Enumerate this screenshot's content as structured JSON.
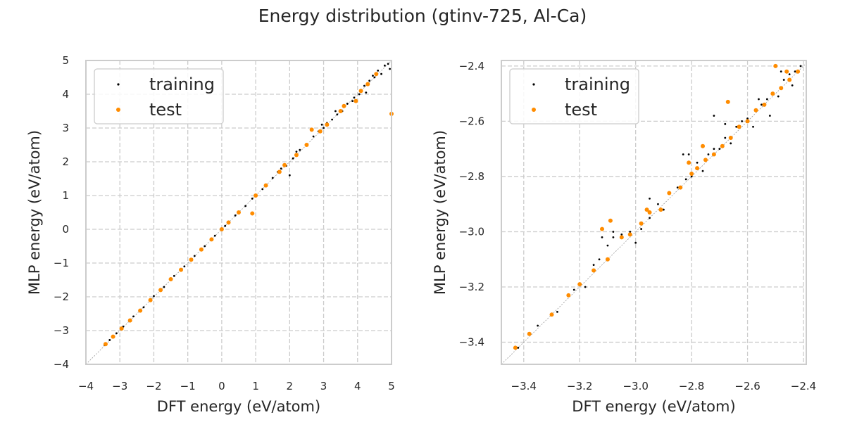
{
  "title": "Energy distribution (gtinv-725, Al-Ca)",
  "colors": {
    "training": "#000000",
    "test": "#ff8c00",
    "grid": "#cccccc",
    "spine": "#cccccc"
  },
  "chart_data": [
    {
      "type": "scatter",
      "xlabel": "DFT energy (eV/atom)",
      "ylabel": "MLP energy (eV/atom)",
      "xlim": [
        -4,
        5
      ],
      "ylim": [
        -4,
        5
      ],
      "xticks": [
        -4,
        -3,
        -2,
        -1,
        0,
        1,
        2,
        3,
        4,
        5
      ],
      "yticks": [
        -4,
        -3,
        -2,
        -1,
        0,
        1,
        2,
        3,
        4,
        5
      ],
      "xtick_labels": [
        "−4",
        "−3",
        "−2",
        "−1",
        "0",
        "1",
        "2",
        "3",
        "4",
        "5"
      ],
      "ytick_labels": [
        "−4",
        "−3",
        "−2",
        "−1",
        "0",
        "1",
        "2",
        "3",
        "4",
        "5"
      ],
      "grid": true,
      "legend": "upper-left",
      "diagonal": true,
      "series": [
        {
          "name": "training",
          "points": [
            [
              -3.45,
              -3.43
            ],
            [
              -3.3,
              -3.28
            ],
            [
              -3.1,
              -3.08
            ],
            [
              -2.9,
              -2.88
            ],
            [
              -2.6,
              -2.58
            ],
            [
              -2.3,
              -2.31
            ],
            [
              -2.0,
              -1.98
            ],
            [
              -1.7,
              -1.71
            ],
            [
              -1.4,
              -1.38
            ],
            [
              -1.1,
              -1.1
            ],
            [
              -0.8,
              -0.79
            ],
            [
              -0.5,
              -0.5
            ],
            [
              -0.2,
              -0.19
            ],
            [
              0.1,
              0.1
            ],
            [
              0.4,
              0.41
            ],
            [
              0.7,
              0.69
            ],
            [
              0.9,
              0.91
            ],
            [
              1.2,
              1.19
            ],
            [
              1.5,
              1.52
            ],
            [
              1.75,
              1.8
            ],
            [
              1.9,
              1.88
            ],
            [
              2.0,
              1.6
            ],
            [
              2.1,
              2.1
            ],
            [
              2.3,
              2.35
            ],
            [
              2.5,
              2.48
            ],
            [
              2.7,
              2.75
            ],
            [
              2.85,
              2.9
            ],
            [
              3.0,
              3.0
            ],
            [
              3.1,
              3.15
            ],
            [
              3.25,
              3.25
            ],
            [
              3.4,
              3.4
            ],
            [
              3.55,
              3.5
            ],
            [
              3.7,
              3.72
            ],
            [
              3.9,
              3.9
            ],
            [
              4.05,
              4.0
            ],
            [
              4.2,
              4.25
            ],
            [
              4.35,
              4.4
            ],
            [
              4.5,
              4.5
            ],
            [
              4.6,
              4.7
            ],
            [
              4.7,
              4.6
            ],
            [
              4.8,
              4.85
            ],
            [
              4.9,
              4.9
            ],
            [
              4.95,
              4.75
            ],
            [
              4.45,
              4.55
            ],
            [
              4.25,
              4.05
            ],
            [
              3.85,
              3.8
            ],
            [
              3.35,
              3.5
            ],
            [
              2.95,
              3.1
            ],
            [
              2.2,
              2.3
            ],
            [
              1.65,
              1.7
            ]
          ]
        },
        {
          "name": "test",
          "points": [
            [
              -3.42,
              -3.4
            ],
            [
              -3.2,
              -3.18
            ],
            [
              -2.95,
              -2.94
            ],
            [
              -2.7,
              -2.7
            ],
            [
              -2.4,
              -2.41
            ],
            [
              -2.1,
              -2.1
            ],
            [
              -1.8,
              -1.8
            ],
            [
              -1.5,
              -1.48
            ],
            [
              -1.2,
              -1.2
            ],
            [
              -0.9,
              -0.9
            ],
            [
              -0.6,
              -0.6
            ],
            [
              -0.3,
              -0.3
            ],
            [
              0.0,
              0.0
            ],
            [
              0.2,
              0.2
            ],
            [
              0.5,
              0.5
            ],
            [
              0.9,
              0.47
            ],
            [
              1.0,
              1.0
            ],
            [
              1.3,
              1.3
            ],
            [
              1.7,
              1.7
            ],
            [
              1.85,
              1.9
            ],
            [
              2.2,
              2.2
            ],
            [
              2.5,
              2.5
            ],
            [
              2.65,
              2.95
            ],
            [
              2.9,
              2.9
            ],
            [
              3.1,
              3.1
            ],
            [
              3.5,
              3.5
            ],
            [
              3.6,
              3.65
            ],
            [
              3.95,
              3.8
            ],
            [
              4.1,
              4.1
            ],
            [
              4.3,
              4.3
            ],
            [
              4.55,
              4.6
            ],
            [
              5.0,
              3.42
            ]
          ]
        }
      ]
    },
    {
      "type": "scatter",
      "xlabel": "DFT energy (eV/atom)",
      "ylabel": "MLP energy (eV/atom)",
      "xlim": [
        -3.48,
        -2.39
      ],
      "ylim": [
        -3.48,
        -2.38
      ],
      "xticks": [
        -3.4,
        -3.2,
        -3.0,
        -2.8,
        -2.6,
        -2.4
      ],
      "yticks": [
        -3.4,
        -3.2,
        -3.0,
        -2.8,
        -2.6,
        -2.4
      ],
      "xtick_labels": [
        "−3.4",
        "−3.2",
        "−3.0",
        "−2.8",
        "−2.6",
        "−2.4"
      ],
      "ytick_labels": [
        "−3.4",
        "−3.2",
        "−3.0",
        "−2.8",
        "−2.6",
        "−2.4"
      ],
      "grid": true,
      "legend": "upper-left",
      "diagonal": true,
      "series": [
        {
          "name": "training",
          "points": [
            [
              -3.42,
              -3.42
            ],
            [
              -3.35,
              -3.34
            ],
            [
              -3.28,
              -3.29
            ],
            [
              -3.22,
              -3.21
            ],
            [
              -3.18,
              -3.2
            ],
            [
              -3.15,
              -3.12
            ],
            [
              -3.13,
              -3.1
            ],
            [
              -3.1,
              -3.05
            ],
            [
              -3.08,
              -3.02
            ],
            [
              -3.05,
              -3.01
            ],
            [
              -3.02,
              -3.0
            ],
            [
              -2.98,
              -2.99
            ],
            [
              -2.95,
              -2.95
            ],
            [
              -2.92,
              -2.9
            ],
            [
              -2.9,
              -2.92
            ],
            [
              -2.88,
              -2.86
            ],
            [
              -2.85,
              -2.84
            ],
            [
              -2.82,
              -2.81
            ],
            [
              -2.8,
              -2.8
            ],
            [
              -2.78,
              -2.75
            ],
            [
              -2.76,
              -2.78
            ],
            [
              -2.74,
              -2.72
            ],
            [
              -2.72,
              -2.7
            ],
            [
              -2.7,
              -2.7
            ],
            [
              -2.68,
              -2.66
            ],
            [
              -2.66,
              -2.68
            ],
            [
              -2.64,
              -2.62
            ],
            [
              -2.62,
              -2.6
            ],
            [
              -2.6,
              -2.59
            ],
            [
              -2.58,
              -2.62
            ],
            [
              -2.55,
              -2.54
            ],
            [
              -2.53,
              -2.52
            ],
            [
              -2.51,
              -2.5
            ],
            [
              -2.49,
              -2.51
            ],
            [
              -2.47,
              -2.45
            ],
            [
              -2.45,
              -2.43
            ],
            [
              -2.43,
              -2.42
            ],
            [
              -2.41,
              -2.4
            ],
            [
              -3.12,
              -3.02
            ],
            [
              -3.08,
              -3.0
            ],
            [
              -2.95,
              -2.88
            ],
            [
              -2.83,
              -2.72
            ],
            [
              -2.81,
              -2.72
            ],
            [
              -2.72,
              -2.58
            ],
            [
              -2.68,
              -2.61
            ],
            [
              -2.56,
              -2.52
            ],
            [
              -2.48,
              -2.42
            ],
            [
              -2.44,
              -2.47
            ],
            [
              -2.52,
              -2.58
            ],
            [
              -3.0,
              -3.04
            ]
          ]
        },
        {
          "name": "test",
          "points": [
            [
              -3.43,
              -3.42
            ],
            [
              -3.38,
              -3.37
            ],
            [
              -3.3,
              -3.3
            ],
            [
              -3.24,
              -3.23
            ],
            [
              -3.2,
              -3.19
            ],
            [
              -3.15,
              -3.14
            ],
            [
              -3.1,
              -3.1
            ],
            [
              -3.05,
              -3.02
            ],
            [
              -3.02,
              -3.01
            ],
            [
              -2.98,
              -2.97
            ],
            [
              -2.95,
              -2.93
            ],
            [
              -2.91,
              -2.92
            ],
            [
              -2.88,
              -2.86
            ],
            [
              -2.84,
              -2.84
            ],
            [
              -2.8,
              -2.79
            ],
            [
              -2.78,
              -2.77
            ],
            [
              -2.75,
              -2.74
            ],
            [
              -2.72,
              -2.72
            ],
            [
              -2.69,
              -2.69
            ],
            [
              -2.66,
              -2.66
            ],
            [
              -2.63,
              -2.62
            ],
            [
              -2.6,
              -2.6
            ],
            [
              -2.57,
              -2.56
            ],
            [
              -2.54,
              -2.54
            ],
            [
              -2.51,
              -2.5
            ],
            [
              -2.48,
              -2.48
            ],
            [
              -2.45,
              -2.45
            ],
            [
              -2.42,
              -2.42
            ],
            [
              -3.12,
              -2.99
            ],
            [
              -3.09,
              -2.96
            ],
            [
              -2.76,
              -2.69
            ],
            [
              -2.67,
              -2.53
            ],
            [
              -2.5,
              -2.4
            ],
            [
              -2.46,
              -2.42
            ],
            [
              -2.96,
              -2.92
            ],
            [
              -2.81,
              -2.75
            ]
          ]
        }
      ]
    }
  ]
}
